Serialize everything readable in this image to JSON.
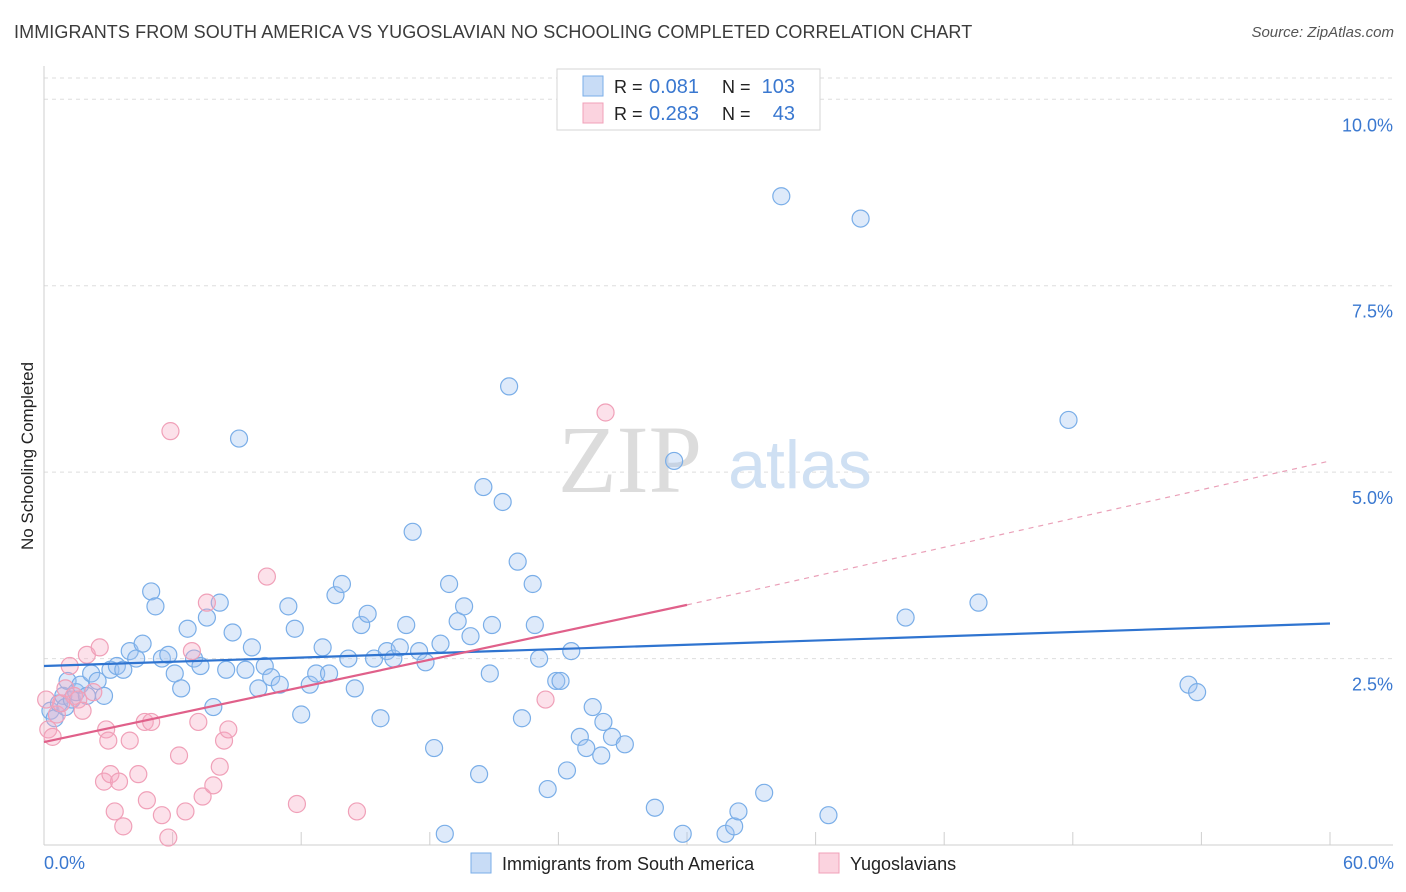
{
  "title": "IMMIGRANTS FROM SOUTH AMERICA VS YUGOSLAVIAN NO SCHOOLING COMPLETED CORRELATION CHART",
  "source": "Source: ZipAtlas.com",
  "watermark": {
    "zip": "ZIP",
    "atlas": "atlas"
  },
  "chart_data": {
    "type": "scatter",
    "ylabel": "No Schooling Completed",
    "xlim": [
      0,
      60
    ],
    "ylim": [
      0,
      10.5
    ],
    "x_tick_labels": [
      "0.0%",
      "60.0%"
    ],
    "y_ticks": [
      2.5,
      5.0,
      7.5,
      10.0
    ],
    "y_tick_labels": [
      "2.5%",
      "5.0%",
      "7.5%",
      "10.0%"
    ],
    "grid": true,
    "legend_position": "top-center",
    "legend": [
      {
        "r_label": "R =",
        "r_value": "0.081",
        "n_label": "N =",
        "n_value": "103"
      },
      {
        "r_label": "R =",
        "r_value": "0.283",
        "n_label": "N =",
        "n_value": "43"
      }
    ],
    "series": [
      {
        "name": "Immigrants from South America",
        "color": "#7aaee8",
        "line_color": "#2f74d0",
        "trend": {
          "x0": 0,
          "y0": 2.4,
          "x1": 60,
          "y1": 2.97
        },
        "points": [
          [
            0.3,
            1.8
          ],
          [
            0.5,
            1.7
          ],
          [
            0.7,
            1.9
          ],
          [
            0.9,
            2.0
          ],
          [
            1.0,
            1.85
          ],
          [
            1.1,
            2.2
          ],
          [
            1.3,
            1.95
          ],
          [
            1.5,
            2.05
          ],
          [
            1.7,
            2.15
          ],
          [
            2.0,
            2.0
          ],
          [
            2.2,
            2.3
          ],
          [
            2.5,
            2.2
          ],
          [
            2.8,
            2.0
          ],
          [
            3.1,
            2.35
          ],
          [
            3.4,
            2.4
          ],
          [
            3.7,
            2.35
          ],
          [
            4.0,
            2.6
          ],
          [
            4.3,
            2.5
          ],
          [
            4.6,
            2.7
          ],
          [
            5.0,
            3.4
          ],
          [
            5.2,
            3.2
          ],
          [
            5.5,
            2.5
          ],
          [
            5.8,
            2.55
          ],
          [
            6.1,
            2.3
          ],
          [
            6.4,
            2.1
          ],
          [
            6.7,
            2.9
          ],
          [
            7.0,
            2.5
          ],
          [
            7.3,
            2.4
          ],
          [
            7.6,
            3.05
          ],
          [
            7.9,
            1.85
          ],
          [
            8.2,
            3.25
          ],
          [
            8.5,
            2.35
          ],
          [
            8.8,
            2.85
          ],
          [
            9.1,
            5.45
          ],
          [
            9.4,
            2.35
          ],
          [
            9.7,
            2.65
          ],
          [
            10.0,
            2.1
          ],
          [
            10.3,
            2.4
          ],
          [
            10.6,
            2.25
          ],
          [
            11.0,
            2.15
          ],
          [
            11.4,
            3.2
          ],
          [
            11.7,
            2.9
          ],
          [
            12.0,
            1.75
          ],
          [
            12.4,
            2.15
          ],
          [
            12.7,
            2.3
          ],
          [
            13.0,
            2.65
          ],
          [
            13.3,
            2.3
          ],
          [
            13.6,
            3.35
          ],
          [
            13.9,
            3.5
          ],
          [
            14.2,
            2.5
          ],
          [
            14.5,
            2.1
          ],
          [
            14.8,
            2.95
          ],
          [
            15.1,
            3.1
          ],
          [
            15.4,
            2.5
          ],
          [
            15.7,
            1.7
          ],
          [
            16.0,
            2.6
          ],
          [
            16.3,
            2.5
          ],
          [
            16.6,
            2.65
          ],
          [
            16.9,
            2.95
          ],
          [
            17.2,
            4.2
          ],
          [
            17.5,
            2.6
          ],
          [
            17.8,
            2.45
          ],
          [
            18.2,
            1.3
          ],
          [
            18.5,
            2.7
          ],
          [
            18.7,
            0.15
          ],
          [
            18.9,
            3.5
          ],
          [
            19.3,
            3.0
          ],
          [
            19.6,
            3.2
          ],
          [
            19.9,
            2.8
          ],
          [
            20.3,
            0.95
          ],
          [
            20.5,
            4.8
          ],
          [
            20.8,
            2.3
          ],
          [
            20.9,
            2.95
          ],
          [
            21.4,
            4.6
          ],
          [
            21.7,
            6.15
          ],
          [
            22.1,
            3.8
          ],
          [
            22.3,
            1.7
          ],
          [
            22.8,
            3.5
          ],
          [
            22.9,
            2.95
          ],
          [
            23.1,
            2.5
          ],
          [
            23.5,
            0.75
          ],
          [
            23.9,
            2.2
          ],
          [
            24.1,
            2.2
          ],
          [
            24.4,
            1.0
          ],
          [
            24.6,
            2.6
          ],
          [
            25.0,
            1.45
          ],
          [
            25.3,
            1.3
          ],
          [
            25.6,
            1.85
          ],
          [
            26.0,
            1.2
          ],
          [
            26.1,
            1.65
          ],
          [
            26.5,
            1.45
          ],
          [
            27.1,
            1.35
          ],
          [
            28.5,
            0.5
          ],
          [
            29.4,
            5.15
          ],
          [
            29.8,
            0.15
          ],
          [
            31.8,
            0.15
          ],
          [
            32.2,
            0.25
          ],
          [
            32.4,
            0.45
          ],
          [
            33.6,
            0.7
          ],
          [
            34.4,
            8.7
          ],
          [
            36.6,
            0.4
          ],
          [
            38.1,
            8.4
          ],
          [
            40.2,
            3.05
          ],
          [
            43.6,
            3.25
          ],
          [
            47.8,
            5.7
          ],
          [
            53.4,
            2.15
          ],
          [
            53.8,
            2.05
          ]
        ]
      },
      {
        "name": "Yugoslavians",
        "color": "#f0a0b8",
        "line_color": "#e0608a",
        "trend": {
          "x0": 0,
          "y0": 1.38,
          "x1": 30,
          "y1": 3.22
        },
        "trend_dashed": {
          "x0": 30,
          "y0": 3.22,
          "x1": 60,
          "y1": 5.15
        },
        "points": [
          [
            0.1,
            1.95
          ],
          [
            0.2,
            1.55
          ],
          [
            0.4,
            1.45
          ],
          [
            0.6,
            1.75
          ],
          [
            0.8,
            1.9
          ],
          [
            1.0,
            2.1
          ],
          [
            1.2,
            2.4
          ],
          [
            1.4,
            2.0
          ],
          [
            1.6,
            1.95
          ],
          [
            1.8,
            1.8
          ],
          [
            2.0,
            2.55
          ],
          [
            2.3,
            2.05
          ],
          [
            2.6,
            2.65
          ],
          [
            2.8,
            0.85
          ],
          [
            2.9,
            1.55
          ],
          [
            3.0,
            1.4
          ],
          [
            3.1,
            0.95
          ],
          [
            3.3,
            0.45
          ],
          [
            3.5,
            0.85
          ],
          [
            3.7,
            0.25
          ],
          [
            4.0,
            1.4
          ],
          [
            4.4,
            0.95
          ],
          [
            4.7,
            1.65
          ],
          [
            4.8,
            0.6
          ],
          [
            5.0,
            1.65
          ],
          [
            5.5,
            0.4
          ],
          [
            5.8,
            0.1
          ],
          [
            5.9,
            5.55
          ],
          [
            6.3,
            1.2
          ],
          [
            6.6,
            0.45
          ],
          [
            6.9,
            2.6
          ],
          [
            7.2,
            1.65
          ],
          [
            7.4,
            0.65
          ],
          [
            7.6,
            3.25
          ],
          [
            7.9,
            0.8
          ],
          [
            8.2,
            1.05
          ],
          [
            8.4,
            1.4
          ],
          [
            8.6,
            1.55
          ],
          [
            10.4,
            3.6
          ],
          [
            11.8,
            0.55
          ],
          [
            14.6,
            0.45
          ],
          [
            23.4,
            1.95
          ],
          [
            26.2,
            5.8
          ]
        ]
      }
    ]
  }
}
